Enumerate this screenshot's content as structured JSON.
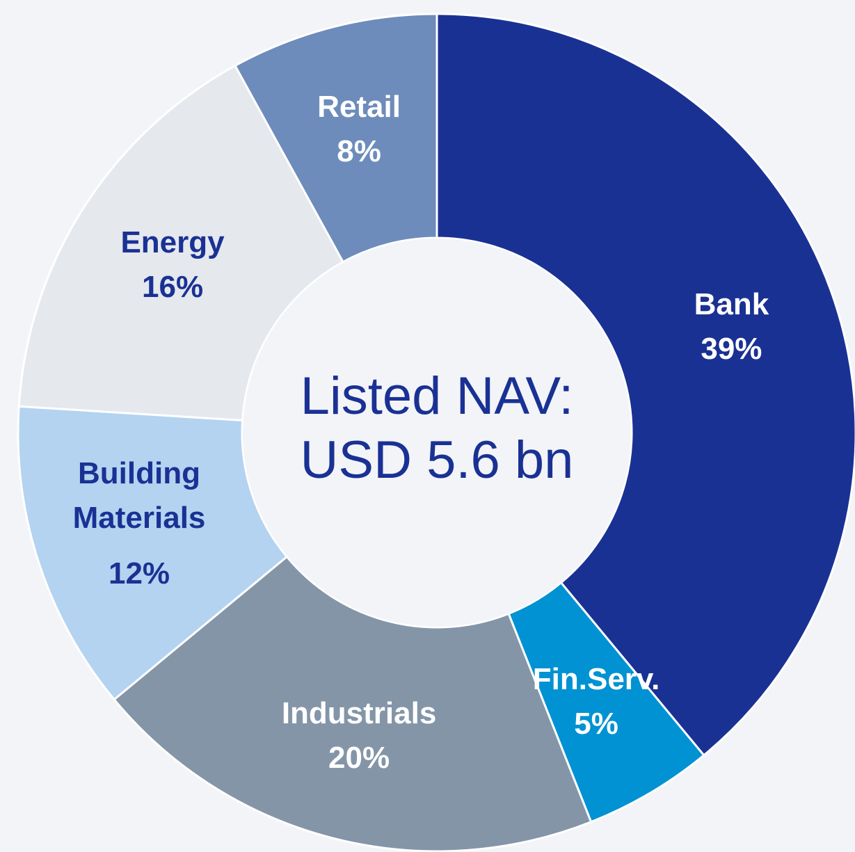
{
  "chart_data": {
    "type": "donut",
    "center_label": "Listed NAV: USD 5.6 bn",
    "categories": [
      "Bank",
      "Fin.Serv.",
      "Industrials",
      "Building Materials",
      "Energy",
      "Retail"
    ],
    "values": [
      39,
      5,
      20,
      12,
      16,
      8
    ],
    "value_labels": [
      "39%",
      "5%",
      "20%",
      "12%",
      "16%",
      "8%"
    ],
    "colors": [
      "#1a3194",
      "#0092d2",
      "#8495a8",
      "#b3d3f0",
      "#e5e8ed",
      "#6d8cbb"
    ]
  }
}
